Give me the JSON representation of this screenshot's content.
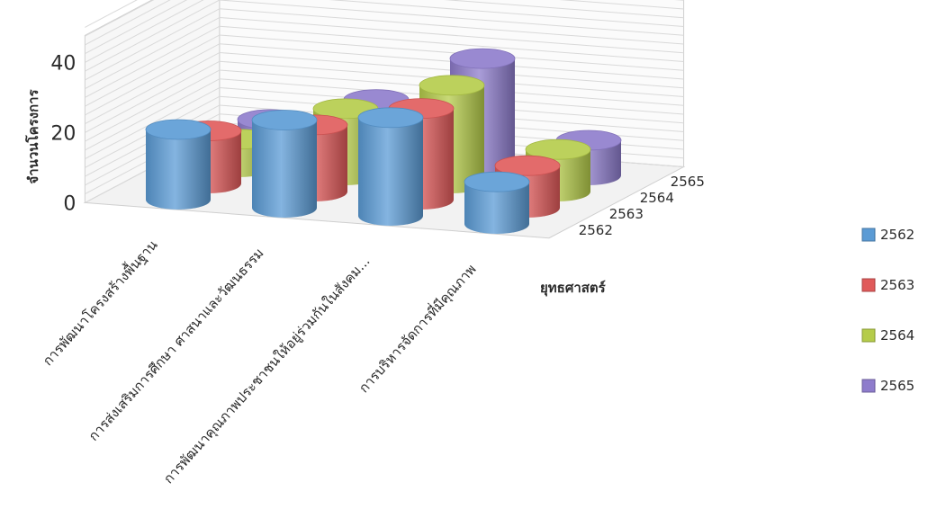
{
  "chart_data": {
    "type": "bar",
    "style": "3d-cylinder",
    "title": "",
    "ylabel": "จำนวนโครงการ",
    "depth_axis_title": "ยุทธศาสตร์",
    "ylim": [
      0,
      40
    ],
    "yticks": [
      0,
      20,
      40
    ],
    "categories": [
      "การพัฒนาโครงสร้างพื้นฐาน",
      "การส่งเสริมการศึกษา ศาสนาและวัฒนธรรม",
      "การพัฒนาคุณภาพประชาชนให้อยู่ร่วมกันในสังคม...",
      "การบริหารจัดการที่มีคุณภาพ"
    ],
    "series": [
      {
        "name": "2562",
        "color": "#5b9bd5",
        "values": [
          20,
          25,
          28,
          12
        ]
      },
      {
        "name": "2563",
        "color": "#e05a5a",
        "values": [
          15,
          19,
          26,
          12
        ]
      },
      {
        "name": "2564",
        "color": "#b5cc4a",
        "values": [
          8,
          19,
          28,
          12
        ]
      },
      {
        "name": "2565",
        "color": "#8e7ccc",
        "values": [
          9,
          17,
          31,
          10
        ]
      }
    ],
    "grid": true,
    "legend": "right"
  }
}
